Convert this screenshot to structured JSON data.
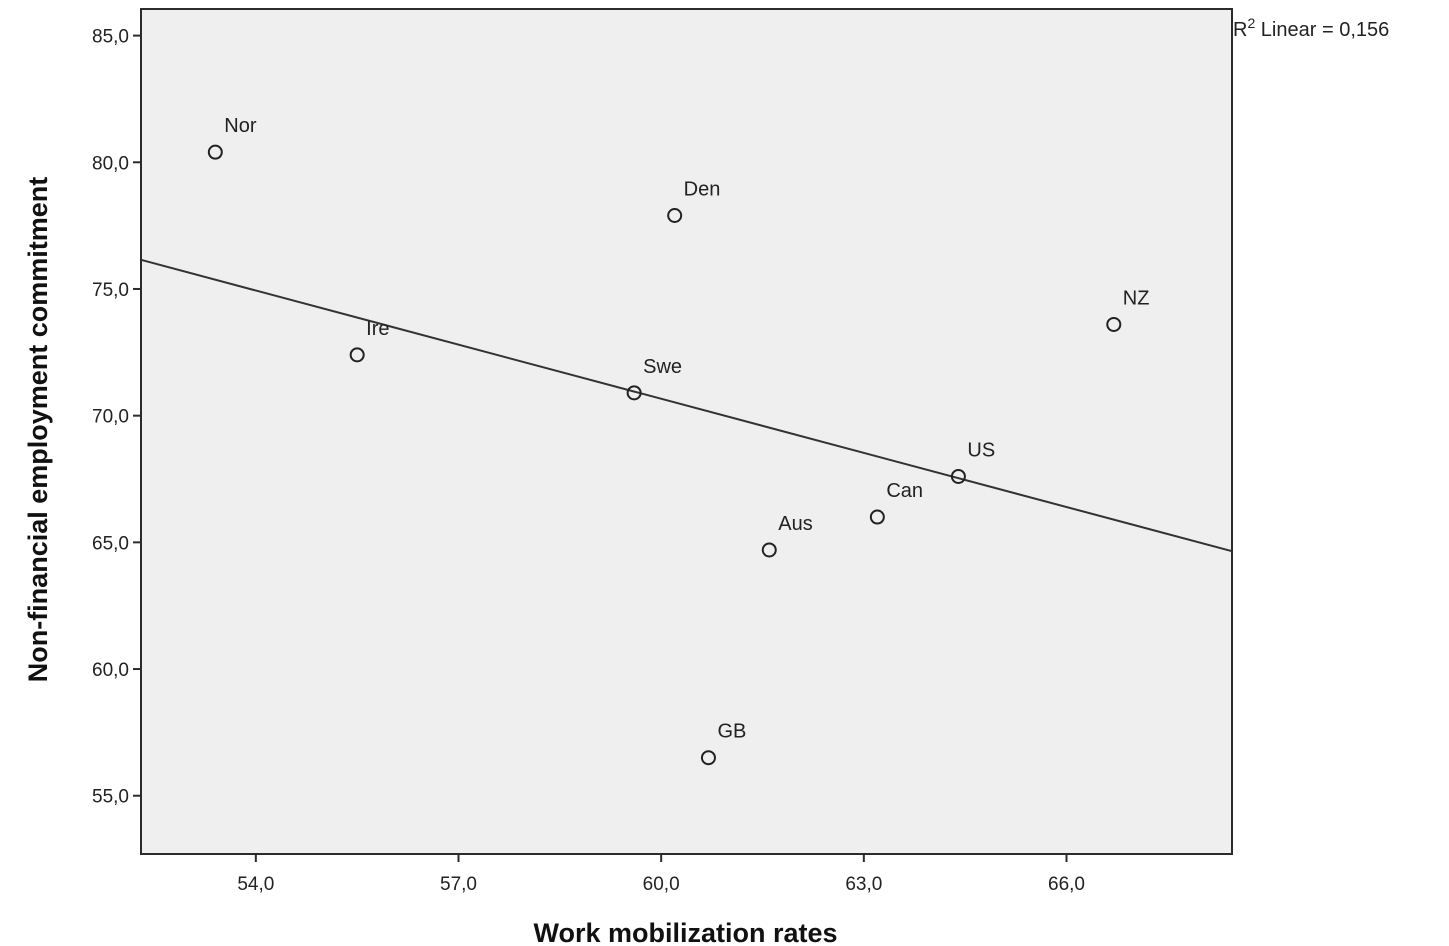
{
  "chart_data": {
    "type": "scatter",
    "xlabel": "Work mobilization rates",
    "ylabel": "Non-financial employment commitment",
    "xlim": [
      52.3,
      68.45
    ],
    "ylim": [
      52.7,
      86.05
    ],
    "xticks": [
      54,
      57,
      60,
      63,
      66
    ],
    "xtick_labels": [
      "54,0",
      "57,0",
      "60,0",
      "63,0",
      "66,0"
    ],
    "yticks": [
      55,
      60,
      65,
      70,
      75,
      80,
      85
    ],
    "ytick_labels": [
      "55,0",
      "60,0",
      "65,0",
      "70,0",
      "75,0",
      "80,0",
      "85,0"
    ],
    "grid": false,
    "plot_background": "#efefef",
    "points": [
      {
        "label": "Nor",
        "x": 53.4,
        "y": 80.4
      },
      {
        "label": "Den",
        "x": 60.2,
        "y": 77.9
      },
      {
        "label": "NZ",
        "x": 66.7,
        "y": 73.6
      },
      {
        "label": "Ire",
        "x": 55.5,
        "y": 72.4
      },
      {
        "label": "Swe",
        "x": 59.6,
        "y": 70.9
      },
      {
        "label": "US",
        "x": 64.4,
        "y": 67.6
      },
      {
        "label": "Can",
        "x": 63.2,
        "y": 66.0
      },
      {
        "label": "Aus",
        "x": 61.6,
        "y": 64.7
      },
      {
        "label": "GB",
        "x": 60.7,
        "y": 56.5
      }
    ],
    "fit_line": {
      "type": "linear",
      "x": [
        52.3,
        68.45
      ],
      "y": [
        76.15,
        64.65
      ],
      "r2_prefix": "R",
      "r2_superscript": "2",
      "r2_text": " Linear = 0,156"
    }
  }
}
